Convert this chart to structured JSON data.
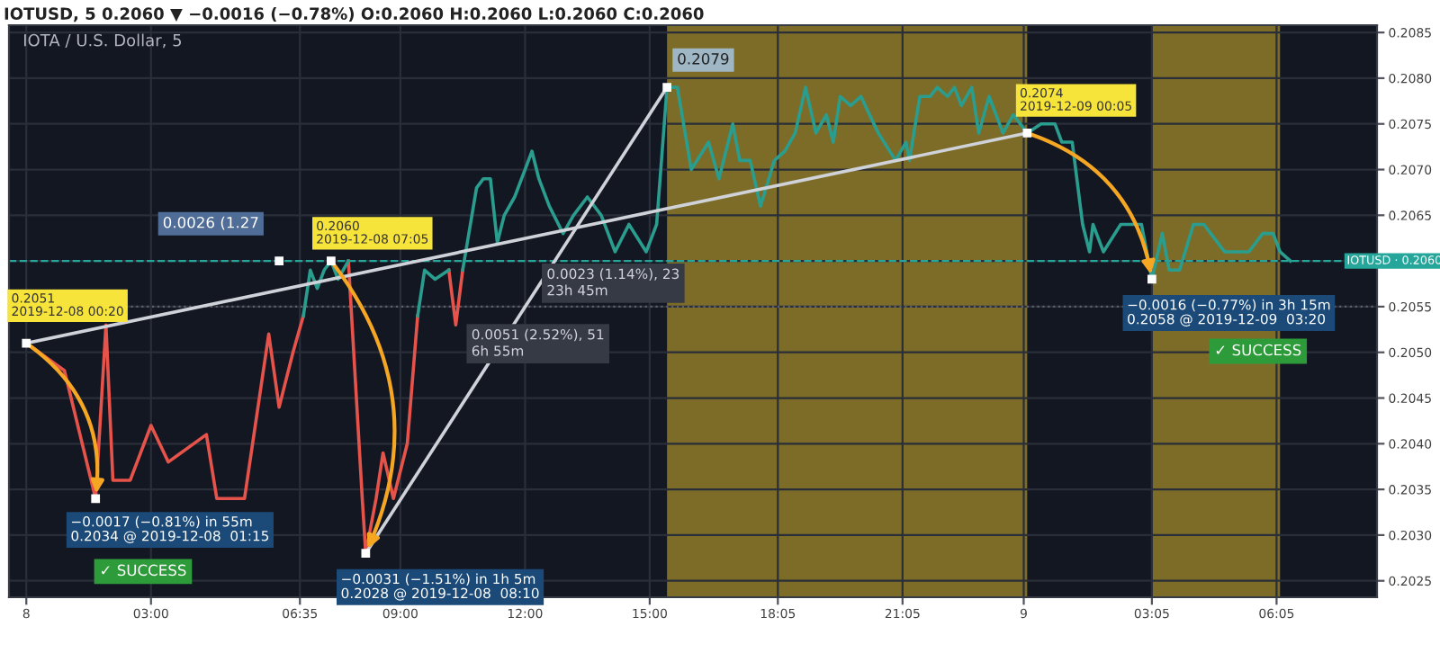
{
  "chart_data": {
    "type": "line",
    "subtitle": "IOTUSD, 5 0.2060 ▼ −0.0016 (−0.78%) O:0.2060 H:0.2060 L:0.2060 C:0.2060",
    "title": "IOTA / U.S. Dollar, 5",
    "series": [
      {
        "color": "#e5534b",
        "x": [
          "2019-12-08T00:00",
          "2019-12-08T00:55",
          "2019-12-08T01:40",
          "2019-12-08T01:55",
          "2019-12-08T02:05",
          "2019-12-08T02:30",
          "2019-12-08T03:00",
          "2019-12-08T03:25",
          "2019-12-08T04:20",
          "2019-12-08T04:35",
          "2019-12-08T05:15",
          "2019-12-08T05:50",
          "2019-12-08T06:05",
          "2019-12-08T06:25",
          "2019-12-08T06:40",
          "2019-12-08T07:30",
          "2019-12-08T07:45",
          "2019-12-08T08:05",
          "2019-12-08T08:10",
          "2019-12-08T08:25",
          "2019-12-08T08:35",
          "2019-12-08T08:50",
          "2019-12-08T09:10",
          "2019-12-08T09:25",
          "2019-12-08T09:50",
          "2019-12-08T10:10",
          "2019-12-08T10:20",
          "2019-12-08T10:30"
        ],
        "values": [
          0.2051,
          0.2048,
          0.2034,
          0.2053,
          0.2036,
          0.2036,
          0.2042,
          0.2038,
          0.2041,
          0.2034,
          0.2034,
          0.2052,
          0.2044,
          0.205,
          0.2054,
          null,
          0.206,
          0.2034,
          0.2028,
          0.2034,
          0.2039,
          0.2034,
          0.204,
          0.2054,
          null,
          0.2059,
          0.2053,
          0.2059
        ]
      },
      {
        "color": "#2a9d8f",
        "x": [
          "2019-12-08T06:40",
          "2019-12-08T06:50",
          "2019-12-08T07:00",
          "2019-12-08T07:10",
          "2019-12-08T07:20",
          "2019-12-08T07:30",
          "2019-12-08T07:45",
          "2019-12-08T08:30",
          "2019-12-08T09:25",
          "2019-12-08T09:35",
          "2019-12-08T09:50",
          "2019-12-08T10:10",
          "2019-12-08T10:15",
          "2019-12-08T10:30",
          "2019-12-08T10:50",
          "2019-12-08T11:00",
          "2019-12-08T11:10",
          "2019-12-08T11:20",
          "2019-12-08T11:30",
          "2019-12-08T11:45",
          "2019-12-08T12:00",
          "2019-12-08T12:10",
          "2019-12-08T12:20",
          "2019-12-08T12:35",
          "2019-12-08T12:55",
          "2019-12-08T13:10",
          "2019-12-08T13:30",
          "2019-12-08T13:50",
          "2019-12-08T14:10",
          "2019-12-08T14:30",
          "2019-12-08T14:55",
          "2019-12-08T15:10",
          "2019-12-08T15:25",
          "2019-12-08T15:40",
          "2019-12-08T16:00",
          "2019-12-08T16:25",
          "2019-12-08T16:40",
          "2019-12-08T17:00",
          "2019-12-08T17:10",
          "2019-12-08T17:25",
          "2019-12-08T17:40",
          "2019-12-08T18:00",
          "2019-12-08T18:15",
          "2019-12-08T18:30",
          "2019-12-08T18:45",
          "2019-12-08T19:00",
          "2019-12-08T19:15",
          "2019-12-08T19:25",
          "2019-12-08T19:35",
          "2019-12-08T19:50",
          "2019-12-08T20:05",
          "2019-12-08T20:30",
          "2019-12-08T20:55",
          "2019-12-08T21:10",
          "2019-12-08T21:15",
          "2019-12-08T21:30",
          "2019-12-08T21:45",
          "2019-12-08T21:55",
          "2019-12-08T22:10",
          "2019-12-08T22:20",
          "2019-12-08T22:30",
          "2019-12-08T22:45",
          "2019-12-08T22:55",
          "2019-12-08T23:10",
          "2019-12-08T23:30",
          "2019-12-08T23:45",
          "2019-12-09T00:05",
          "2019-12-09T00:25",
          "2019-12-09T00:45",
          "2019-12-09T00:55",
          "2019-12-09T01:10",
          "2019-12-09T01:25",
          "2019-12-09T01:35",
          "2019-12-09T01:40",
          "2019-12-09T01:55",
          "2019-12-09T02:20",
          "2019-12-09T02:30",
          "2019-12-09T02:50",
          "2019-12-09T03:05",
          "2019-12-09T03:20",
          "2019-12-09T03:30",
          "2019-12-09T03:45",
          "2019-12-09T04:05",
          "2019-12-09T04:20",
          "2019-12-09T04:50",
          "2019-12-09T05:25",
          "2019-12-09T05:45",
          "2019-12-09T06:00",
          "2019-12-09T06:10",
          "2019-12-09T06:25"
        ],
        "values": [
          0.2054,
          0.2059,
          0.2057,
          0.2059,
          0.206,
          0.2058,
          0.206,
          null,
          0.2054,
          0.2059,
          0.2058,
          0.2059,
          null,
          0.2059,
          0.2068,
          0.2069,
          0.2069,
          0.2062,
          0.2065,
          0.2067,
          0.207,
          0.2072,
          0.2069,
          0.2066,
          0.2063,
          0.2065,
          0.2067,
          0.2065,
          0.2061,
          0.2064,
          0.2061,
          0.2064,
          0.2079,
          0.2079,
          0.207,
          0.2073,
          0.2069,
          0.2075,
          0.2071,
          0.2071,
          0.2066,
          0.2071,
          0.2072,
          0.2074,
          0.2079,
          0.2074,
          0.2076,
          0.2073,
          0.2078,
          0.2077,
          0.2078,
          0.2074,
          0.2071,
          0.2073,
          0.2071,
          0.2078,
          0.2078,
          0.2079,
          0.2078,
          0.2079,
          0.2077,
          0.2079,
          0.2074,
          0.2078,
          0.2074,
          0.2076,
          0.2074,
          0.2075,
          0.2075,
          0.2073,
          0.2073,
          0.2064,
          0.2061,
          0.2064,
          0.2061,
          0.2064,
          0.2064,
          0.2064,
          0.2058,
          0.2063,
          0.2059,
          0.2059,
          0.2064,
          0.2064,
          0.2061,
          0.2061,
          0.2063,
          0.2063,
          0.2061,
          0.206
        ]
      },
      {
        "type": "line",
        "color": "#cfd2d8",
        "x": [
          "2019-12-08T00:00",
          "2019-12-09T00:05"
        ],
        "values": [
          0.2051,
          0.2074
        ]
      },
      {
        "type": "line",
        "color": "#cfd2d8",
        "x": [
          "2019-12-08T08:10",
          "2019-12-08T15:25"
        ],
        "values": [
          0.2028,
          0.2079
        ]
      }
    ],
    "xlim": [
      "2019-12-07T23:35",
      "2019-12-09T08:30"
    ],
    "xticks": [
      {
        "value": "2019-12-08",
        "label": "8"
      },
      {
        "value": "2019-12-08T03:00",
        "label": "03:00"
      },
      {
        "value": "2019-12-08T06:35",
        "label": "06:35"
      },
      {
        "value": "2019-12-08T09:00",
        "label": "09:00"
      },
      {
        "value": "2019-12-08T12:00",
        "label": "12:00"
      },
      {
        "value": "2019-12-08T15:00",
        "label": "15:00"
      },
      {
        "value": "2019-12-08T18:05",
        "label": "18:05"
      },
      {
        "value": "2019-12-08T21:05",
        "label": "21:05"
      },
      {
        "value": "2019-12-09",
        "label": "9"
      },
      {
        "value": "2019-12-09T03:05",
        "label": "03:05"
      },
      {
        "value": "2019-12-09T06:05",
        "label": "06:05"
      }
    ],
    "ylim": [
      0.20232,
      0.20858
    ],
    "yticks": [
      0.2025,
      {
        "value": 0.203,
        "label": "0.2030"
      },
      0.2035,
      {
        "value": 0.204,
        "label": "0.2040"
      },
      0.2045,
      {
        "value": 0.205,
        "label": "0.2050"
      },
      0.2055,
      {
        "value": 0.206,
        "label": null
      },
      0.2065,
      {
        "value": 0.207,
        "label": "0.2070"
      },
      0.2075,
      {
        "value": 0.208,
        "label": "0.2080"
      },
      0.2085
    ],
    "grid": true,
    "ref_lines": [
      {
        "axis": "y",
        "value": 0.206,
        "label": "IOTUSD · 0.2060",
        "color": "#26a69a",
        "line_style": "dashed"
      },
      {
        "axis": "y",
        "value": 0.2055,
        "color": "#5d606b",
        "line_style": "dotted"
      }
    ],
    "bands": [
      {
        "axis": "x",
        "from": "2019-12-08T15:25",
        "to": "2019-12-09T00:05",
        "color": "#a08a2a"
      },
      {
        "axis": "x",
        "from": "2019-12-09T03:05",
        "to": "2019-12-09T06:10",
        "color": "#a08a2a"
      }
    ],
    "annotations": [
      {
        "text": "0.2051\n2019-12-08 00:20",
        "x": "2019-12-08T00:00",
        "y": 0.2051
      },
      {
        "text": "0.2060\n2019-12-08 07:05",
        "x": "2019-12-08T07:20",
        "y": 0.206
      },
      {
        "text": "0.0026 (1.27",
        "x": "2019-12-08T06:05",
        "y": 0.206
      },
      {
        "text": "0.2079",
        "x": "2019-12-08T15:25",
        "y": 0.2079
      },
      {
        "text": "0.2074\n2019-12-09 00:05",
        "x": "2019-12-09T00:05",
        "y": 0.2074
      },
      {
        "text": "−0.0017 (−0.81%) in 55m\n0.2034 @ 2019-12-08  01:15",
        "x": "2019-12-08T01:40",
        "y": 0.2034
      },
      {
        "text": "−0.0031 (−1.51%) in 1h 5m\n0.2028 @ 2019-12-08  08:10",
        "x": "2019-12-08T08:10",
        "y": 0.2028
      },
      {
        "text": "−0.0016 (−0.77%) in 3h 15m\n0.2058 @ 2019-12-09  03:20",
        "x": "2019-12-09T03:05",
        "y": 0.2058
      },
      "0.0023 (1.14%), 23\n23h 45m",
      "0.0051 (2.52%), 51\n6h 55m",
      "✓ SUCCESS",
      "✓ SUCCESS"
    ]
  }
}
